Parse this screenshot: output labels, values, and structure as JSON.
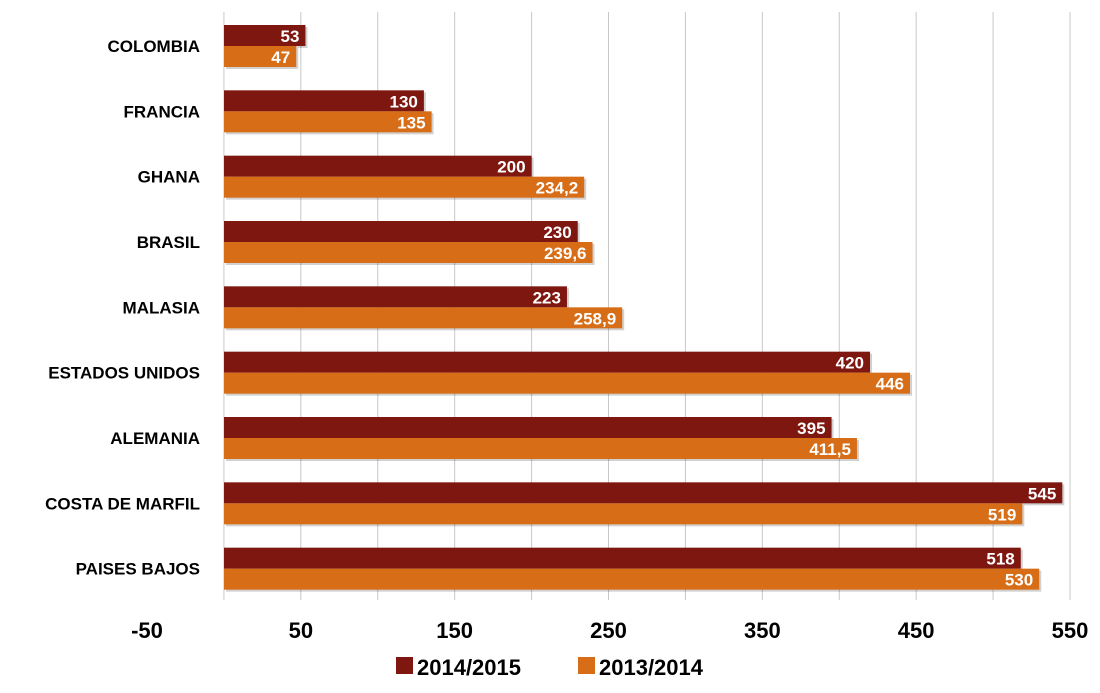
{
  "chart_data": {
    "type": "bar",
    "orientation": "horizontal",
    "categories": [
      "COLOMBIA",
      "FRANCIA",
      "GHANA",
      "BRASIL",
      "MALASIA",
      "ESTADOS UNIDOS",
      "ALEMANIA",
      "COSTA DE MARFIL",
      "PAISES BAJOS"
    ],
    "series": [
      {
        "name": "2014/2015",
        "color": "#7f1711",
        "values": [
          53,
          130,
          200,
          230,
          223,
          420,
          395,
          545,
          518
        ],
        "labels": [
          "53",
          "130",
          "200",
          "230",
          "223",
          "420",
          "395",
          "545",
          "518"
        ]
      },
      {
        "name": "2013/2014",
        "color": "#d76d17",
        "values": [
          47,
          135,
          234.2,
          239.6,
          258.9,
          446,
          411.5,
          519,
          530
        ],
        "labels": [
          "47",
          "135",
          "234,2",
          "239,6",
          "258,9",
          "446",
          "411,5",
          "519",
          "530"
        ]
      }
    ],
    "xlim": [
      -50,
      550
    ],
    "xticks": [
      -50,
      50,
      150,
      250,
      350,
      450,
      550
    ],
    "xtick_labels": [
      "-50",
      "50",
      "150",
      "250",
      "350",
      "450",
      "550"
    ],
    "grid": "vertical",
    "legend": "bottom",
    "title": "",
    "xlabel": "",
    "ylabel": ""
  }
}
